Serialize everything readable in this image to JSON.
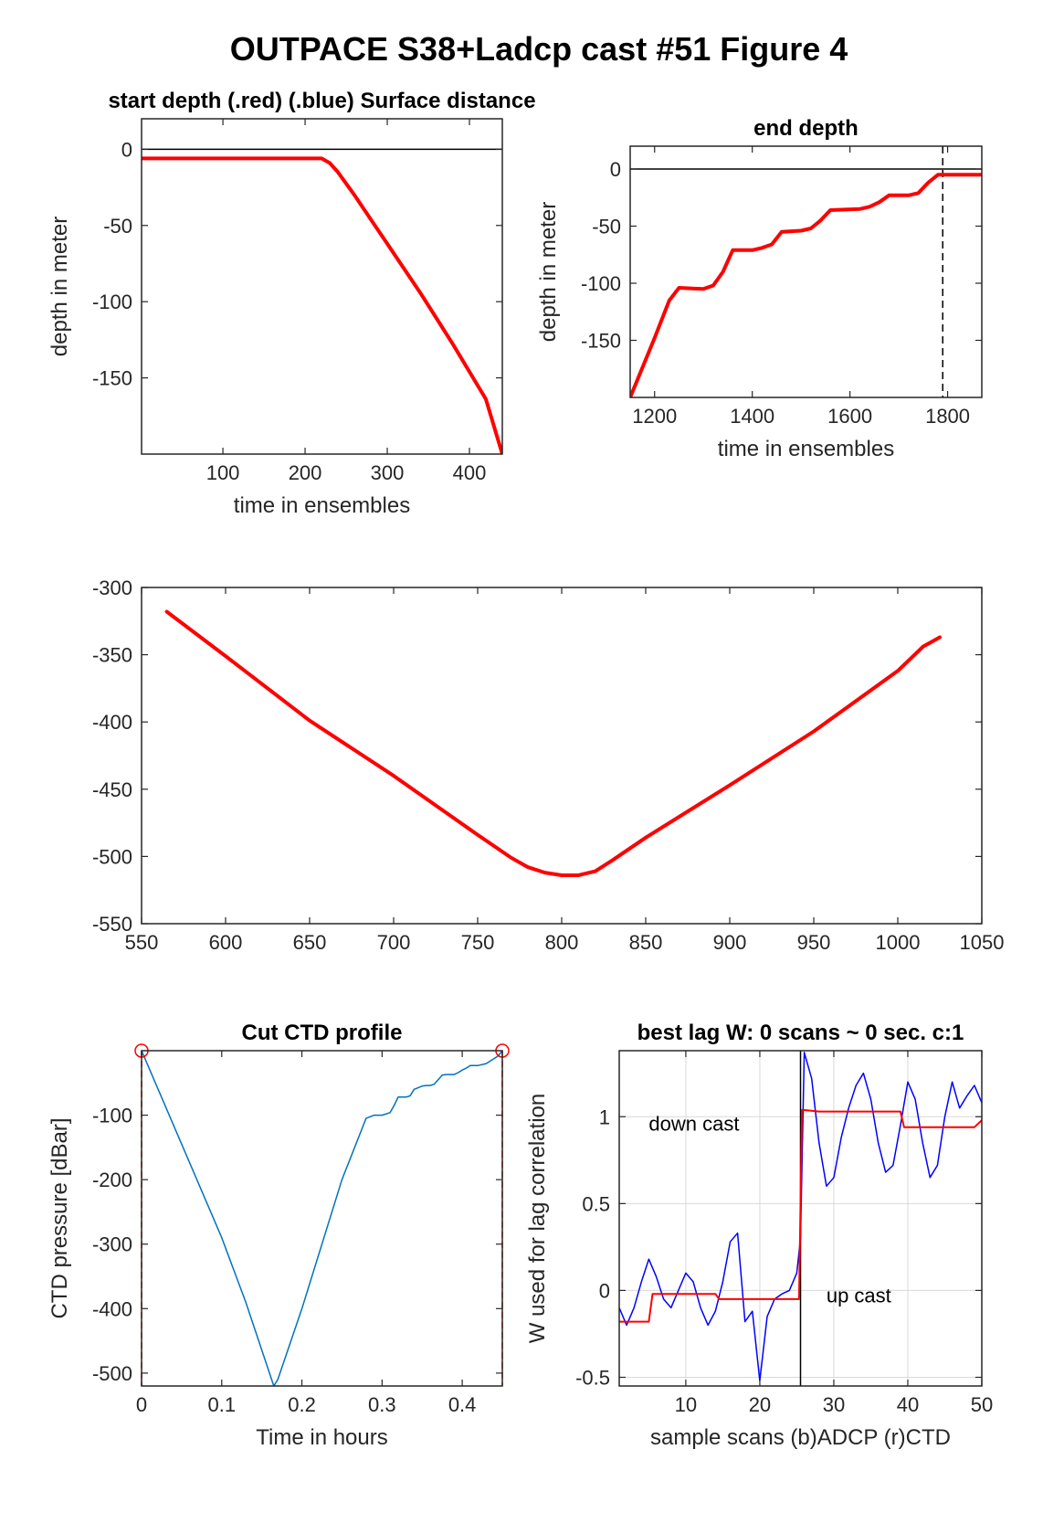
{
  "figure": {
    "title": "OUTPACE S38+Ladcp cast #51   Figure 4"
  },
  "colors": {
    "red": "#ff0000",
    "blue": "#0000ff",
    "ctd_blue": "#0072bd",
    "grid": "#d9d9d9",
    "axis": "#262626"
  },
  "chart_data": [
    {
      "id": "start",
      "type": "line",
      "title": "start depth (.red) (.blue) Surface distance",
      "xlabel": "time in ensembles",
      "ylabel": "depth in meter",
      "xlim": [
        1,
        440
      ],
      "ylim": [
        -200,
        20
      ],
      "xticks": [
        100,
        200,
        300,
        400
      ],
      "yticks": [
        0,
        -50,
        -100,
        -150
      ],
      "grid": false,
      "hlines": [
        0
      ],
      "series": [
        {
          "color": "#ff0000",
          "width": 4,
          "x": [
            1,
            100,
            200,
            220,
            230,
            240,
            260,
            280,
            300,
            320,
            340,
            360,
            380,
            400,
            420,
            440
          ],
          "y": [
            -6,
            -6,
            -6,
            -6,
            -9,
            -15,
            -30,
            -46,
            -62,
            -78,
            -94,
            -111,
            -128,
            -146,
            -164,
            -200
          ]
        }
      ]
    },
    {
      "id": "end",
      "type": "line",
      "title": "end depth",
      "xlabel": "time in ensembles",
      "ylabel": "depth in meter",
      "xlim": [
        1150,
        1870
      ],
      "ylim": [
        -200,
        20
      ],
      "xticks": [
        1200,
        1400,
        1600,
        1800
      ],
      "yticks": [
        0,
        -50,
        -100,
        -150
      ],
      "grid": false,
      "hlines": [
        0
      ],
      "vlines": [
        1790
      ],
      "series": [
        {
          "color": "#ff0000",
          "width": 4,
          "x": [
            1150,
            1200,
            1230,
            1250,
            1300,
            1320,
            1340,
            1360,
            1400,
            1420,
            1440,
            1460,
            1500,
            1520,
            1540,
            1560,
            1620,
            1640,
            1660,
            1680,
            1720,
            1740,
            1760,
            1780,
            1800,
            1870
          ],
          "y": [
            -200,
            -148,
            -115,
            -104,
            -105,
            -102,
            -90,
            -71,
            -71,
            -69,
            -66,
            -55,
            -54,
            -52,
            -45,
            -36,
            -35,
            -33,
            -29,
            -23,
            -23,
            -21,
            -12,
            -5,
            -5,
            -5
          ]
        }
      ]
    },
    {
      "id": "middle",
      "type": "line",
      "title": "",
      "xlabel": "",
      "ylabel": "",
      "xlim": [
        550,
        1050
      ],
      "ylim": [
        -550,
        -300
      ],
      "xticks": [
        550,
        600,
        650,
        700,
        750,
        800,
        850,
        900,
        950,
        1000,
        1050
      ],
      "yticks": [
        -300,
        -350,
        -400,
        -450,
        -500,
        -550
      ],
      "grid": false,
      "series": [
        {
          "color": "#ff0000",
          "width": 4,
          "x": [
            565,
            600,
            650,
            700,
            750,
            770,
            780,
            790,
            800,
            810,
            820,
            830,
            850,
            900,
            950,
            1000,
            1015,
            1025
          ],
          "y": [
            -318,
            -351,
            -399,
            -440,
            -484,
            -501,
            -508,
            -512,
            -514,
            -514,
            -511,
            -503,
            -486,
            -447,
            -407,
            -362,
            -344,
            -337
          ]
        }
      ]
    },
    {
      "id": "cut",
      "type": "line",
      "title": "Cut CTD profile",
      "xlabel": "Time in hours",
      "ylabel": "CTD pressure [dBar]",
      "xlim": [
        0,
        0.45
      ],
      "ylim": [
        -520,
        0
      ],
      "xticks": [
        0,
        0.1,
        0.2,
        0.3,
        0.4
      ],
      "yticks": [
        -100,
        -200,
        -300,
        -400,
        -500
      ],
      "grid": false,
      "vlines_dashed": [
        0,
        0.45
      ],
      "endpoints": [
        [
          0,
          0
        ],
        [
          0.45,
          0
        ]
      ],
      "series": [
        {
          "color": "#0072bd",
          "width": 1.5,
          "x": [
            0,
            0.05,
            0.1,
            0.13,
            0.165,
            0.17,
            0.2,
            0.25,
            0.28,
            0.29,
            0.3,
            0.31,
            0.315,
            0.32,
            0.325,
            0.33,
            0.335,
            0.34,
            0.35,
            0.355,
            0.36,
            0.365,
            0.37,
            0.375,
            0.38,
            0.39,
            0.395,
            0.4,
            0.405,
            0.41,
            0.42,
            0.43,
            0.44,
            0.445,
            0.45
          ],
          "y": [
            0,
            -145,
            -290,
            -390,
            -520,
            -510,
            -400,
            -200,
            -105,
            -100,
            -100,
            -96,
            -85,
            -72,
            -72,
            -72,
            -70,
            -60,
            -55,
            -54,
            -54,
            -52,
            -45,
            -38,
            -37,
            -37,
            -34,
            -30,
            -27,
            -23,
            -23,
            -20,
            -12,
            -8,
            0
          ]
        }
      ]
    },
    {
      "id": "lag",
      "type": "line",
      "title": "best lag W: 0 scans ~ 0 sec.  c:1",
      "xlabel": "sample scans (b)ADCP (r)CTD",
      "ylabel": "W used for lag correlation",
      "xlim": [
        1,
        50
      ],
      "ylim": [
        -0.55,
        1.38
      ],
      "xticks": [
        10,
        20,
        30,
        40,
        50
      ],
      "yticks": [
        -0.5,
        0,
        0.5,
        1
      ],
      "grid": true,
      "vlines": [
        25.5
      ],
      "annotations": [
        {
          "text": "down cast",
          "x": 5,
          "y": 0.92
        },
        {
          "text": "up cast",
          "x": 29,
          "y": -0.07
        }
      ],
      "series": [
        {
          "color": "#0000ff",
          "width": 1.5,
          "x": [
            1,
            2,
            3,
            4,
            5,
            6,
            7,
            8,
            9,
            10,
            11,
            12,
            13,
            14,
            15,
            16,
            17,
            18,
            19,
            20,
            21,
            22,
            23,
            24,
            25,
            25.5,
            26,
            27,
            28,
            29,
            30,
            31,
            32,
            33,
            34,
            35,
            36,
            37,
            38,
            39,
            40,
            41,
            42,
            43,
            44,
            45,
            46,
            47,
            48,
            49,
            50
          ],
          "y": [
            -0.1,
            -0.2,
            -0.1,
            0.05,
            0.18,
            0.08,
            -0.05,
            -0.1,
            0.0,
            0.1,
            0.05,
            -0.1,
            -0.2,
            -0.12,
            0.05,
            0.28,
            0.33,
            -0.18,
            -0.12,
            -0.52,
            -0.15,
            -0.05,
            -0.02,
            0.0,
            0.1,
            0.3,
            1.37,
            1.22,
            0.85,
            0.6,
            0.65,
            0.88,
            1.05,
            1.18,
            1.25,
            1.1,
            0.85,
            0.68,
            0.72,
            0.95,
            1.2,
            1.1,
            0.85,
            0.65,
            0.72,
            1.0,
            1.2,
            1.05,
            1.12,
            1.18,
            1.08
          ]
        },
        {
          "color": "#ff0000",
          "width": 2,
          "x": [
            1,
            5,
            5.5,
            8,
            14,
            14.5,
            18,
            25.3,
            25.7,
            28,
            39,
            39.5,
            49,
            50
          ],
          "y": [
            -0.18,
            -0.18,
            -0.02,
            -0.02,
            -0.02,
            -0.05,
            -0.05,
            -0.05,
            1.04,
            1.03,
            1.03,
            0.94,
            0.94,
            0.98
          ]
        }
      ]
    }
  ]
}
